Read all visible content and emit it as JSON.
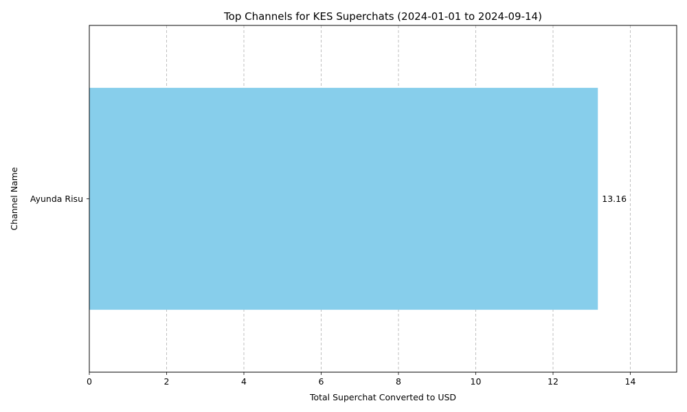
{
  "chart_data": {
    "type": "bar",
    "orientation": "horizontal",
    "title": "Top Channels for KES Superchats (2024-01-01 to 2024-09-14)",
    "xlabel": "Total Superchat Converted to USD",
    "ylabel": "Channel Name",
    "categories": [
      "Ayunda Risu"
    ],
    "values": [
      13.16
    ],
    "value_labels": [
      "13.16"
    ],
    "xlim": [
      0,
      15.2
    ],
    "xticks": [
      0,
      2,
      4,
      6,
      8,
      10,
      12,
      14
    ],
    "grid": "x-dashed",
    "bar_color": "#87CEEB"
  }
}
